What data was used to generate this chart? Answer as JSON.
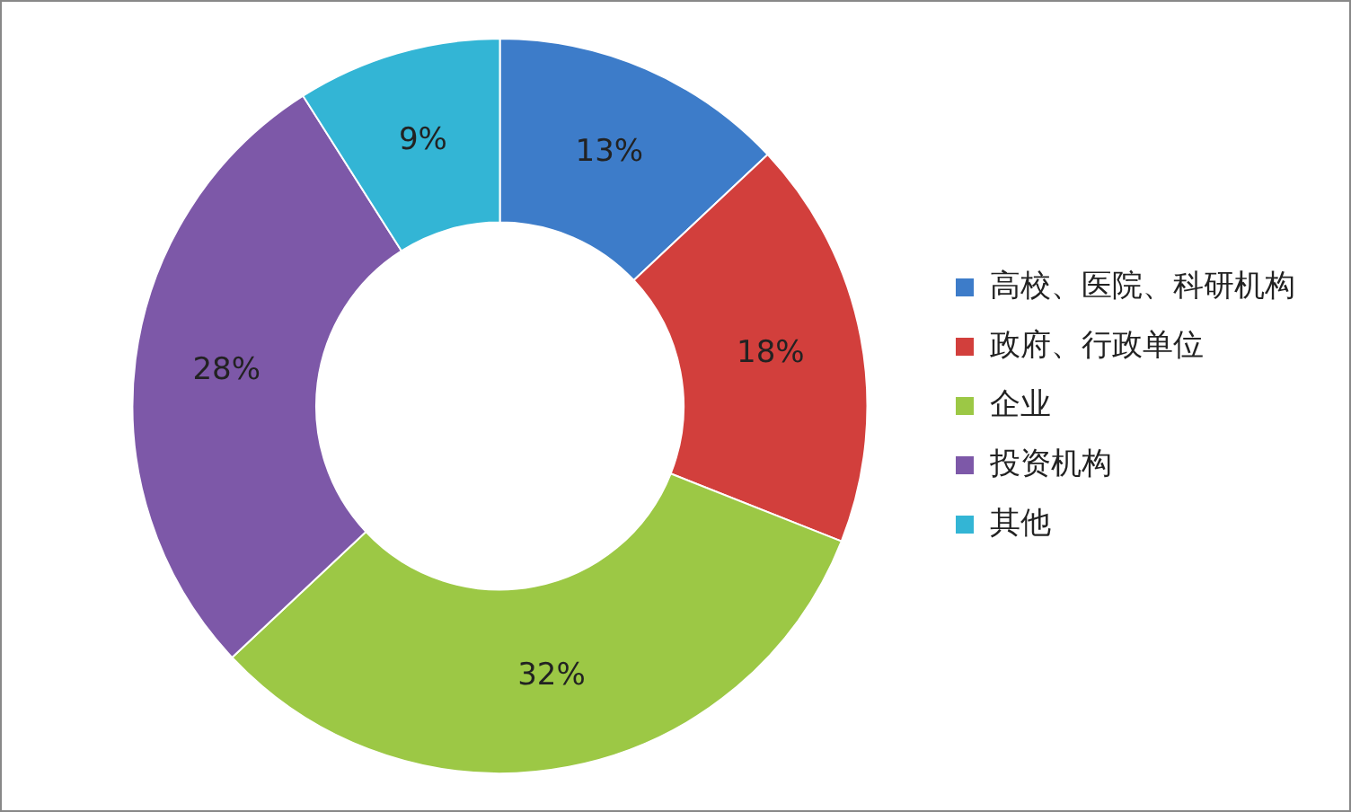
{
  "chart_data": {
    "type": "donut",
    "categories": [
      "高校、医院、科研机构",
      "政府、行政单位",
      "企业",
      "投资机构",
      "其他"
    ],
    "values": [
      13,
      18,
      32,
      28,
      9
    ],
    "colors": [
      "#3d7cc9",
      "#d23f3c",
      "#9cc845",
      "#7d58a8",
      "#33b5d5"
    ],
    "value_labels": [
      "13%",
      "18%",
      "32%",
      "28%",
      "9%"
    ],
    "legend": "right"
  }
}
